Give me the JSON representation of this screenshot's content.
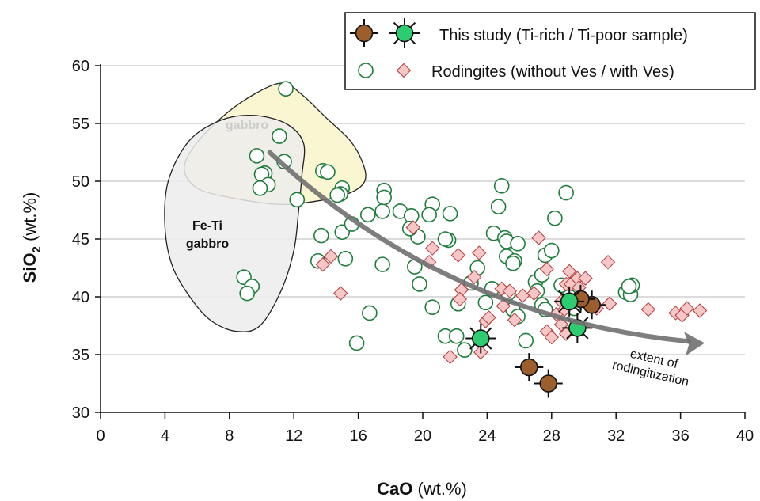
{
  "chart_data": {
    "type": "scatter",
    "x_axis": {
      "label_main": "CaO",
      "label_unit": " (wt.%)",
      "range": [
        0,
        40
      ],
      "ticks": [
        0,
        4,
        8,
        12,
        16,
        20,
        24,
        28,
        32,
        36,
        40
      ],
      "tick_labels": [
        "0",
        "4",
        "8",
        "12",
        "16",
        "20",
        "24",
        "28",
        "32",
        "36",
        "40"
      ]
    },
    "y_axis": {
      "label_main": "SiO",
      "label_sub": "2",
      "label_unit": " (wt.%)",
      "range": [
        30,
        60
      ],
      "ticks": [
        30,
        35,
        40,
        45,
        50,
        55,
        60
      ],
      "tick_labels": [
        "30",
        "35",
        "40",
        "45",
        "50",
        "55",
        "60"
      ]
    },
    "grid": "horizontal",
    "legend": {
      "placement": "top-right",
      "entries": [
        "This study (Ti-rich / Ti-poor sample)",
        "Rodingites (without Ves / with Ves)"
      ]
    },
    "regions": [
      {
        "label": "gabbro",
        "color": "#fbf6d2",
        "outline": [
          [
            11.3,
            58.5
          ],
          [
            12.5,
            57.5
          ],
          [
            14.0,
            55.5
          ],
          [
            15.5,
            53.5
          ],
          [
            16.3,
            51.5
          ],
          [
            16.4,
            50.0
          ],
          [
            15.5,
            49.0
          ],
          [
            13.5,
            48.3
          ],
          [
            11.0,
            48.0
          ],
          [
            8.0,
            48.6
          ],
          [
            6.0,
            49.4
          ],
          [
            5.2,
            51.0
          ],
          [
            5.8,
            53.0
          ],
          [
            7.5,
            55.5
          ],
          [
            9.5,
            57.5
          ]
        ]
      },
      {
        "label": "Fe-Ti\ngabbro",
        "color": "#ececec",
        "outline": [
          [
            9.5,
            55.7
          ],
          [
            11.5,
            55.0
          ],
          [
            12.6,
            53.3
          ],
          [
            12.5,
            50.5
          ],
          [
            12.3,
            47.5
          ],
          [
            12.0,
            44.0
          ],
          [
            11.2,
            40.5
          ],
          [
            9.9,
            37.5
          ],
          [
            8.5,
            37.0
          ],
          [
            7.0,
            37.8
          ],
          [
            5.8,
            39.5
          ],
          [
            4.5,
            42.5
          ],
          [
            4.0,
            46.0
          ],
          [
            4.2,
            50.0
          ],
          [
            5.5,
            53.5
          ],
          [
            7.5,
            55.3
          ]
        ]
      }
    ],
    "trend_arrow": {
      "from": [
        10.5,
        52.5
      ],
      "to": [
        37.5,
        36.0
      ],
      "label": "extent of\nrodingitization"
    },
    "series": [
      {
        "name": "Rodingites (without Ves)",
        "marker": "open-circle",
        "color": "#1e7d3c",
        "points": [
          [
            11.5,
            58.0
          ],
          [
            11.1,
            53.9
          ],
          [
            9.7,
            52.2
          ],
          [
            11.4,
            51.7
          ],
          [
            10.2,
            50.7
          ],
          [
            10.0,
            50.6
          ],
          [
            10.4,
            49.7
          ],
          [
            9.9,
            49.4
          ],
          [
            12.2,
            48.4
          ],
          [
            13.8,
            50.9
          ],
          [
            14.1,
            50.8
          ],
          [
            15.0,
            49.4
          ],
          [
            14.9,
            48.9
          ],
          [
            14.7,
            48.8
          ],
          [
            8.9,
            41.7
          ],
          [
            9.4,
            40.9
          ],
          [
            9.1,
            40.3
          ],
          [
            13.7,
            45.3
          ],
          [
            13.5,
            43.1
          ],
          [
            15.0,
            45.6
          ],
          [
            15.6,
            46.3
          ],
          [
            15.2,
            43.3
          ],
          [
            16.6,
            47.1
          ],
          [
            17.5,
            47.4
          ],
          [
            17.6,
            49.2
          ],
          [
            17.6,
            48.6
          ],
          [
            17.5,
            42.8
          ],
          [
            18.6,
            47.4
          ],
          [
            16.7,
            38.6
          ],
          [
            15.9,
            36.0
          ],
          [
            19.3,
            47.0
          ],
          [
            19.7,
            45.2
          ],
          [
            20.6,
            48.0
          ],
          [
            20.4,
            47.1
          ],
          [
            19.2,
            45.9
          ],
          [
            19.5,
            42.6
          ],
          [
            19.8,
            41.1
          ],
          [
            20.6,
            39.1
          ],
          [
            21.6,
            44.9
          ],
          [
            21.4,
            45.0
          ],
          [
            21.7,
            47.2
          ],
          [
            21.4,
            36.6
          ],
          [
            22.1,
            36.6
          ],
          [
            22.2,
            39.4
          ],
          [
            22.6,
            35.4
          ],
          [
            23.0,
            41.2
          ],
          [
            23.4,
            42.5
          ],
          [
            23.9,
            39.5
          ],
          [
            24.3,
            40.7
          ],
          [
            24.4,
            45.5
          ],
          [
            24.9,
            49.6
          ],
          [
            24.7,
            47.8
          ],
          [
            25.1,
            45.1
          ],
          [
            25.2,
            44.8
          ],
          [
            25.2,
            43.5
          ],
          [
            25.7,
            43.1
          ],
          [
            25.9,
            44.6
          ],
          [
            25.6,
            42.9
          ],
          [
            25.3,
            40.3
          ],
          [
            25.6,
            38.9
          ],
          [
            25.9,
            38.3
          ],
          [
            26.4,
            36.2
          ],
          [
            27.0,
            41.3
          ],
          [
            27.1,
            40.5
          ],
          [
            27.4,
            39.3
          ],
          [
            27.6,
            38.9
          ],
          [
            27.4,
            41.9
          ],
          [
            27.6,
            43.6
          ],
          [
            28.0,
            44.0
          ],
          [
            28.2,
            46.8
          ],
          [
            28.9,
            49.0
          ],
          [
            28.6,
            41.0
          ],
          [
            29.1,
            40.0
          ],
          [
            29.4,
            39.0
          ],
          [
            32.6,
            40.4
          ],
          [
            32.9,
            40.2
          ],
          [
            33.0,
            41.0
          ],
          [
            32.8,
            40.9
          ]
        ]
      },
      {
        "name": "Rodingites (with Ves)",
        "marker": "diamond",
        "color": "#f7c6c6",
        "stroke": "#b03a3a",
        "points": [
          [
            13.8,
            42.8
          ],
          [
            14.3,
            43.5
          ],
          [
            14.9,
            40.3
          ],
          [
            19.4,
            46.0
          ],
          [
            20.4,
            43.0
          ],
          [
            20.6,
            44.2
          ],
          [
            21.7,
            34.8
          ],
          [
            22.2,
            43.6
          ],
          [
            22.4,
            40.6
          ],
          [
            22.3,
            39.8
          ],
          [
            23.2,
            41.7
          ],
          [
            23.5,
            43.8
          ],
          [
            23.6,
            35.2
          ],
          [
            23.9,
            37.9
          ],
          [
            24.1,
            38.2
          ],
          [
            24.9,
            40.7
          ],
          [
            25.0,
            39.2
          ],
          [
            25.4,
            40.5
          ],
          [
            25.7,
            38.0
          ],
          [
            26.2,
            40.1
          ],
          [
            26.9,
            40.3
          ],
          [
            27.2,
            45.1
          ],
          [
            27.7,
            42.4
          ],
          [
            27.7,
            37.0
          ],
          [
            28.0,
            36.5
          ],
          [
            28.3,
            38.5
          ],
          [
            28.6,
            39.6
          ],
          [
            28.8,
            38.9
          ],
          [
            28.9,
            41.1
          ],
          [
            29.1,
            42.2
          ],
          [
            29.2,
            41.1
          ],
          [
            29.6,
            41.6
          ],
          [
            29.7,
            40.8
          ],
          [
            30.1,
            41.6
          ],
          [
            30.3,
            39.2
          ],
          [
            30.8,
            39.0
          ],
          [
            31.5,
            43.0
          ],
          [
            31.6,
            39.4
          ],
          [
            34.0,
            38.9
          ],
          [
            35.7,
            38.6
          ],
          [
            36.1,
            38.4
          ],
          [
            36.4,
            39.0
          ],
          [
            37.2,
            38.8
          ],
          [
            28.9,
            36.8
          ],
          [
            28.6,
            37.6
          ]
        ]
      },
      {
        "name": "This study (Ti-rich sample)",
        "marker": "cross-circle",
        "color": "#9b5e2c",
        "points": [
          [
            26.6,
            33.9
          ],
          [
            27.8,
            32.5
          ],
          [
            30.5,
            39.3
          ],
          [
            29.8,
            39.8
          ]
        ]
      },
      {
        "name": "This study (Ti-poor sample)",
        "marker": "star-circle",
        "color": "#2ecc71",
        "points": [
          [
            23.6,
            36.4
          ],
          [
            29.1,
            39.6
          ],
          [
            29.6,
            37.3
          ]
        ]
      }
    ]
  }
}
